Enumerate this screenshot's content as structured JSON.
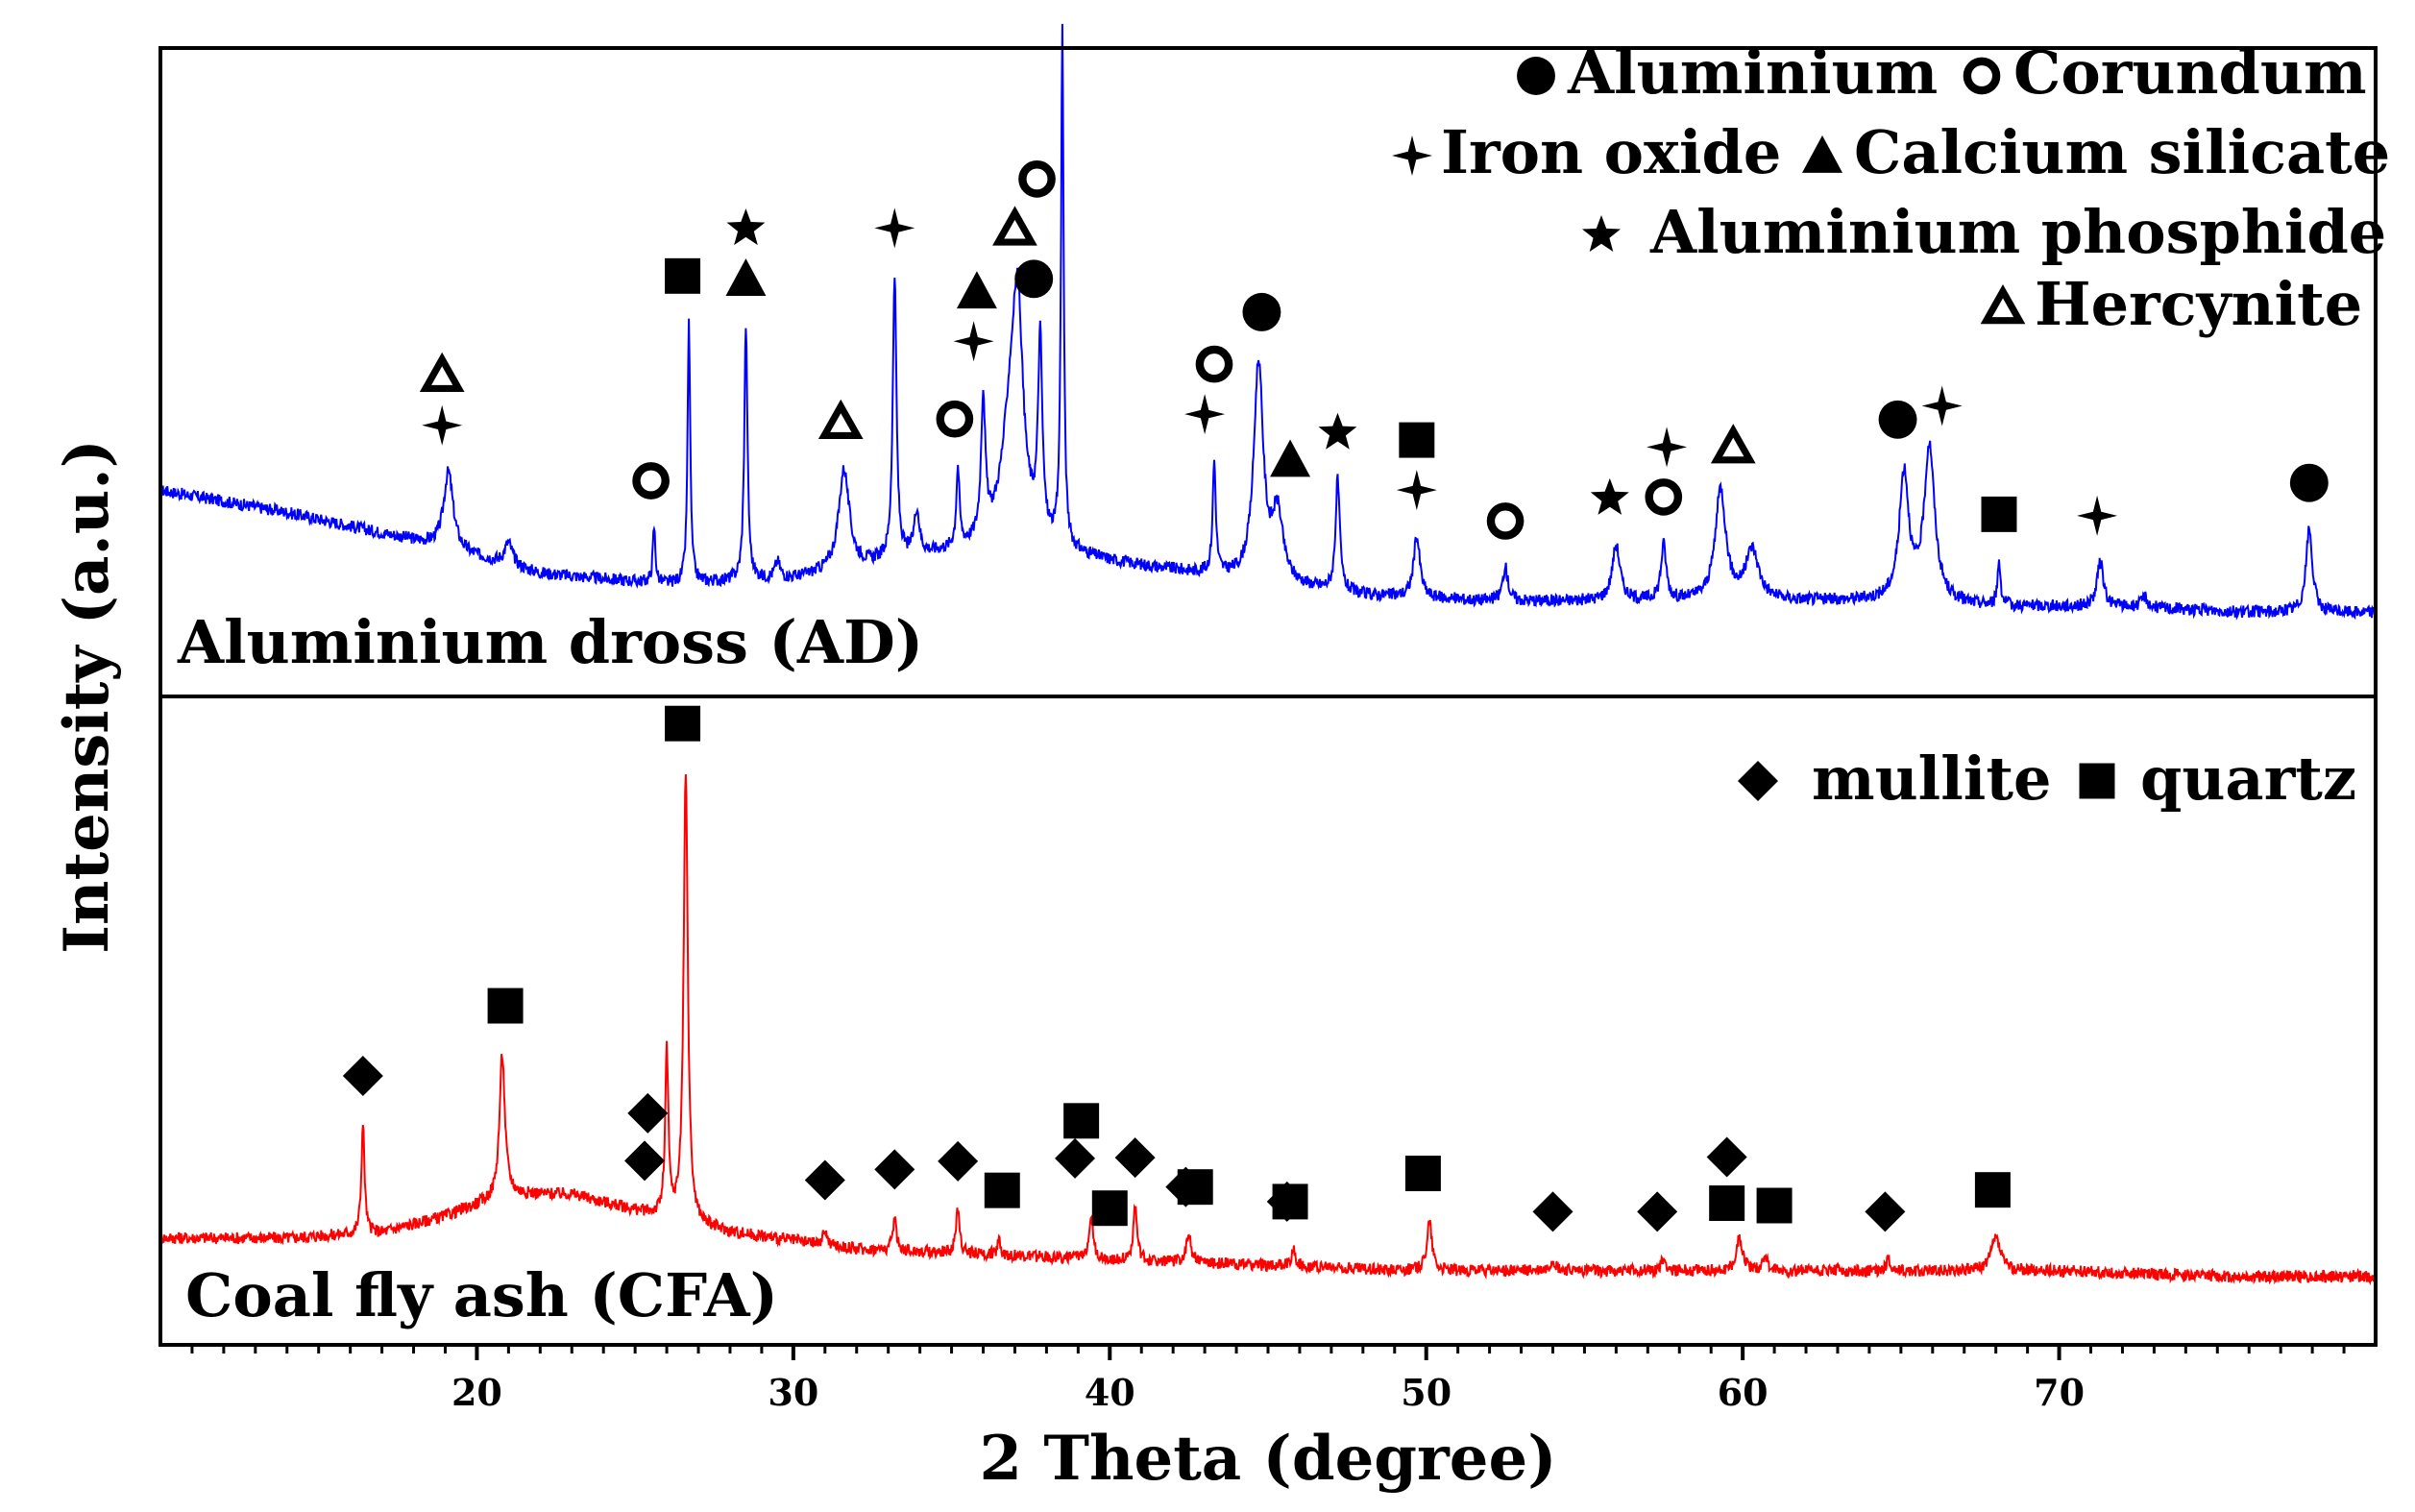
{
  "chart_data": {
    "type": "line",
    "xlabel": "2 Theta (degree)",
    "ylabel": "Intensity (a.u.)",
    "xlim": [
      10,
      80
    ],
    "xticks": [
      20,
      30,
      40,
      50,
      60,
      70
    ],
    "grid": false,
    "panels": [
      {
        "name": "Aluminium dross (AD)",
        "color": "#0000ff",
        "ylim": [
          0,
          100
        ],
        "baseline": [
          [
            10,
            28
          ],
          [
            14,
            24
          ],
          [
            18,
            19
          ],
          [
            22,
            13
          ],
          [
            26,
            11
          ],
          [
            30,
            12
          ],
          [
            34,
            16
          ],
          [
            37,
            18
          ],
          [
            40,
            15
          ],
          [
            44,
            12
          ],
          [
            48,
            9
          ],
          [
            52,
            8
          ],
          [
            56,
            8
          ],
          [
            60,
            8
          ],
          [
            64,
            8
          ],
          [
            68,
            7
          ],
          [
            72,
            7
          ],
          [
            76,
            6
          ],
          [
            80,
            6
          ]
        ],
        "peaks": [
          [
            19.1,
            14,
            0.18
          ],
          [
            21.0,
            4,
            0.15
          ],
          [
            25.6,
            10,
            0.05
          ],
          [
            26.7,
            47,
            0.05
          ],
          [
            28.5,
            46,
            0.06
          ],
          [
            29.5,
            3,
            0.1
          ],
          [
            31.6,
            18,
            0.2
          ],
          [
            33.2,
            51,
            0.07
          ],
          [
            33.9,
            8,
            0.1
          ],
          [
            35.2,
            14,
            0.06
          ],
          [
            36.0,
            25,
            0.08
          ],
          [
            36.9,
            24,
            0.35
          ],
          [
            37.1,
            30,
            0.18
          ],
          [
            37.8,
            35,
            0.08
          ],
          [
            38.5,
            93,
            0.05
          ],
          [
            43.3,
            20,
            0.06
          ],
          [
            44.7,
            39,
            0.18
          ],
          [
            45.3,
            12,
            0.2
          ],
          [
            47.2,
            20,
            0.08
          ],
          [
            49.7,
            11,
            0.12
          ],
          [
            52.5,
            6,
            0.1
          ],
          [
            56.0,
            10,
            0.15
          ],
          [
            57.5,
            10,
            0.1
          ],
          [
            59.3,
            20,
            0.2
          ],
          [
            60.3,
            9,
            0.25
          ],
          [
            65.1,
            23,
            0.18
          ],
          [
            65.9,
            28,
            0.2
          ],
          [
            68.1,
            8,
            0.06
          ],
          [
            71.3,
            8,
            0.12
          ],
          [
            72.7,
            2,
            0.1
          ],
          [
            77.9,
            15,
            0.12
          ]
        ],
        "series": [
          {
            "name": "Aluminium",
            "symbol": "filled-circle",
            "positions": [
              37.6,
              44.8,
              64.9,
              77.9
            ]
          },
          {
            "name": "Corundum",
            "symbol": "open-circle",
            "positions": [
              25.5,
              35.1,
              37.7,
              43.3,
              52.5,
              57.5
            ]
          },
          {
            "name": "Iron oxide",
            "symbol": "four-point-star",
            "positions": [
              18.9,
              33.2,
              35.7,
              43.0,
              49.7,
              57.6,
              66.3,
              71.2
            ]
          },
          {
            "name": "Calcium silicate",
            "symbol": "filled-triangle",
            "positions": [
              28.5,
              35.8,
              45.7
            ]
          },
          {
            "name": "Aluminium phosphide",
            "symbol": "filled-star",
            "positions": [
              28.5,
              47.2,
              55.8
            ]
          },
          {
            "name": "Hercynite",
            "symbol": "open-triangle",
            "positions": [
              18.9,
              31.5,
              37.0,
              59.7
            ]
          },
          {
            "name": "quartz",
            "symbol": "filled-square",
            "positions": [
              26.5,
              49.7,
              68.1
            ],
            "in_legend": false
          }
        ]
      },
      {
        "name": "Coal fly ash (CFA)",
        "color": "#ff0000",
        "ylim": [
          0,
          100
        ],
        "baseline": [
          [
            10,
            9
          ],
          [
            14,
            9
          ],
          [
            17,
            10
          ],
          [
            19,
            13
          ],
          [
            21,
            17
          ],
          [
            23,
            17
          ],
          [
            25,
            14
          ],
          [
            28,
            10
          ],
          [
            32,
            7
          ],
          [
            36,
            6
          ],
          [
            40,
            5
          ],
          [
            45,
            4
          ],
          [
            50,
            3
          ],
          [
            55,
            3
          ],
          [
            60,
            3
          ],
          [
            65,
            3
          ],
          [
            70,
            3
          ],
          [
            75,
            2
          ],
          [
            80,
            2
          ]
        ],
        "peaks": [
          [
            16.4,
            20,
            0.06
          ],
          [
            20.8,
            26,
            0.1
          ],
          [
            26.0,
            30,
            0.06
          ],
          [
            26.6,
            82,
            0.08
          ],
          [
            31.0,
            3,
            0.06
          ],
          [
            33.2,
            6,
            0.07
          ],
          [
            35.2,
            8,
            0.07
          ],
          [
            36.5,
            3,
            0.06
          ],
          [
            39.4,
            8,
            0.08
          ],
          [
            40.8,
            10,
            0.07
          ],
          [
            42.5,
            5,
            0.1
          ],
          [
            45.8,
            3,
            0.08
          ],
          [
            50.1,
            9,
            0.1
          ],
          [
            54.0,
            2,
            0.1
          ],
          [
            57.5,
            2,
            0.1
          ],
          [
            59.9,
            6,
            0.12
          ],
          [
            60.7,
            3,
            0.08
          ],
          [
            64.6,
            2,
            0.08
          ],
          [
            68.0,
            6,
            0.18
          ]
        ],
        "series": [
          {
            "name": "mullite",
            "symbol": "filled-diamond",
            "markers": [
              [
                16.4,
                0
              ],
              [
                25.3,
                0
              ],
              [
                25.4,
                1
              ],
              [
                31.0,
                0
              ],
              [
                33.2,
                0
              ],
              [
                35.2,
                0
              ],
              [
                38.9,
                1
              ],
              [
                40.8,
                0
              ],
              [
                42.4,
                0
              ],
              [
                45.6,
                0
              ],
              [
                54.0,
                0
              ],
              [
                57.3,
                0
              ],
              [
                59.5,
                1
              ],
              [
                64.5,
                0
              ]
            ]
          },
          {
            "name": "quartz",
            "symbol": "filled-square",
            "markers": [
              [
                20.9,
                0
              ],
              [
                26.5,
                0
              ],
              [
                36.6,
                0
              ],
              [
                39.1,
                1
              ],
              [
                40.0,
                0
              ],
              [
                42.7,
                0
              ],
              [
                45.7,
                0
              ],
              [
                49.9,
                0
              ],
              [
                59.5,
                0
              ],
              [
                61.0,
                0
              ],
              [
                67.9,
                0
              ]
            ]
          }
        ]
      }
    ],
    "legend_top": {
      "placement": "top-right",
      "rows": [
        [
          {
            "symbol": "filled-circle",
            "label": "Aluminium"
          },
          {
            "symbol": "open-circle",
            "label": "Corundum"
          }
        ],
        [
          {
            "symbol": "four-point-star",
            "label": "Iron oxide"
          },
          {
            "symbol": "filled-triangle",
            "label": "Calcium silicate"
          }
        ],
        [
          {
            "symbol": "filled-star",
            "label": "Aluminium phosphide"
          }
        ],
        [
          {
            "symbol": "open-triangle",
            "label": "Hercynite"
          }
        ]
      ]
    },
    "legend_bottom": {
      "placement": "top-right",
      "rows": [
        [
          {
            "symbol": "filled-diamond",
            "label": "mullite"
          },
          {
            "symbol": "filled-square",
            "label": "quartz"
          }
        ]
      ]
    }
  }
}
